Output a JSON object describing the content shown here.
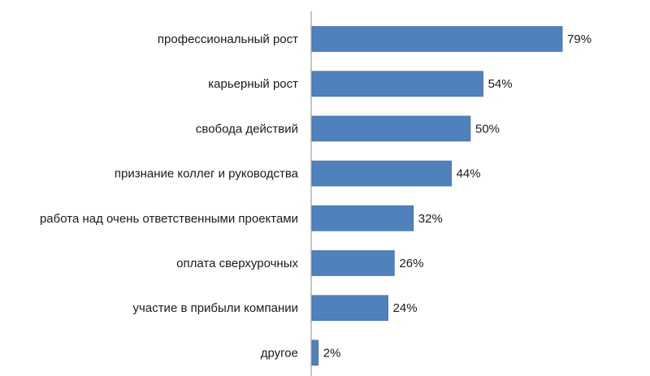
{
  "chart_data": {
    "type": "bar",
    "orientation": "horizontal",
    "categories": [
      "профессиональный рост",
      "карьерный рост",
      "свобода действий",
      "признание коллег и руководства",
      "работа над очень ответственными проектами",
      "оплата сверхурочных",
      "участие в прибыли компании",
      "другое"
    ],
    "values": [
      79,
      54,
      50,
      44,
      32,
      26,
      24,
      2
    ],
    "value_labels": [
      "79%",
      "54%",
      "50%",
      "44%",
      "32%",
      "26%",
      "24%",
      "2%"
    ],
    "unit": "%",
    "xlim": [
      0,
      100
    ],
    "title": "",
    "xlabel": "",
    "ylabel": "",
    "grid": false,
    "legend": "none",
    "colors": {
      "bar": "#4F81BD",
      "bar_edge": "#3A6A9E",
      "axis": "#8c8c8c"
    }
  }
}
